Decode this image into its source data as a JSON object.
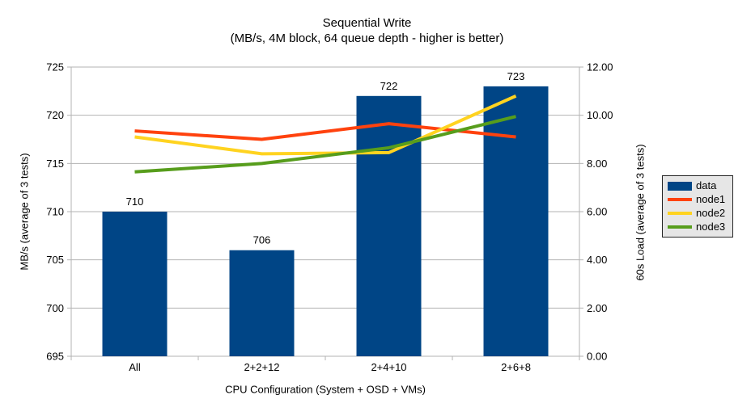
{
  "chart_data": {
    "type": "combo-bar-line",
    "title": "Sequential Write",
    "subtitle": "(MB/s, 4M block, 64 queue depth - higher is better)",
    "categories": [
      "All",
      "2+2+12",
      "2+4+10",
      "2+6+8"
    ],
    "series": [
      {
        "name": "data",
        "type": "bar",
        "axis": "left",
        "color": "#004586",
        "values": [
          710,
          706,
          722,
          723
        ],
        "data_labels": [
          "710",
          "706",
          "722",
          "723"
        ]
      },
      {
        "name": "node1",
        "type": "line",
        "axis": "right",
        "color": "#ff420e",
        "values": [
          9.35,
          9.0,
          9.65,
          9.1
        ]
      },
      {
        "name": "node2",
        "type": "line",
        "axis": "right",
        "color": "#ffd320",
        "values": [
          9.1,
          8.4,
          8.45,
          10.8
        ]
      },
      {
        "name": "node3",
        "type": "line",
        "axis": "right",
        "color": "#579d1c",
        "values": [
          7.65,
          8.0,
          8.65,
          9.95
        ]
      }
    ],
    "xlabel": "CPU Configuration (System + OSD + VMs)",
    "ylabel_left": "MB/s (average of 3 tests)",
    "ylabel_right": "60s Load (average of 3 tests)",
    "yaxis_left": {
      "min": 695,
      "max": 725,
      "step": 5,
      "tick_labels": [
        "695",
        "700",
        "705",
        "710",
        "715",
        "720",
        "725"
      ]
    },
    "yaxis_right": {
      "min": 0,
      "max": 12,
      "step": 2,
      "tick_labels": [
        "0.00",
        "2.00",
        "4.00",
        "6.00",
        "8.00",
        "10.00",
        "12.00"
      ]
    },
    "grid": true,
    "grid_color": "#b3b3b3",
    "legend_position": "right",
    "legend": {
      "background": "#e6e6e6",
      "border": "#262626",
      "items": [
        {
          "label": "data",
          "color": "#004586",
          "swatch": "box"
        },
        {
          "label": "node1",
          "color": "#ff420e",
          "swatch": "line"
        },
        {
          "label": "node2",
          "color": "#ffd320",
          "swatch": "line"
        },
        {
          "label": "node3",
          "color": "#579d1c",
          "swatch": "line"
        }
      ]
    }
  }
}
